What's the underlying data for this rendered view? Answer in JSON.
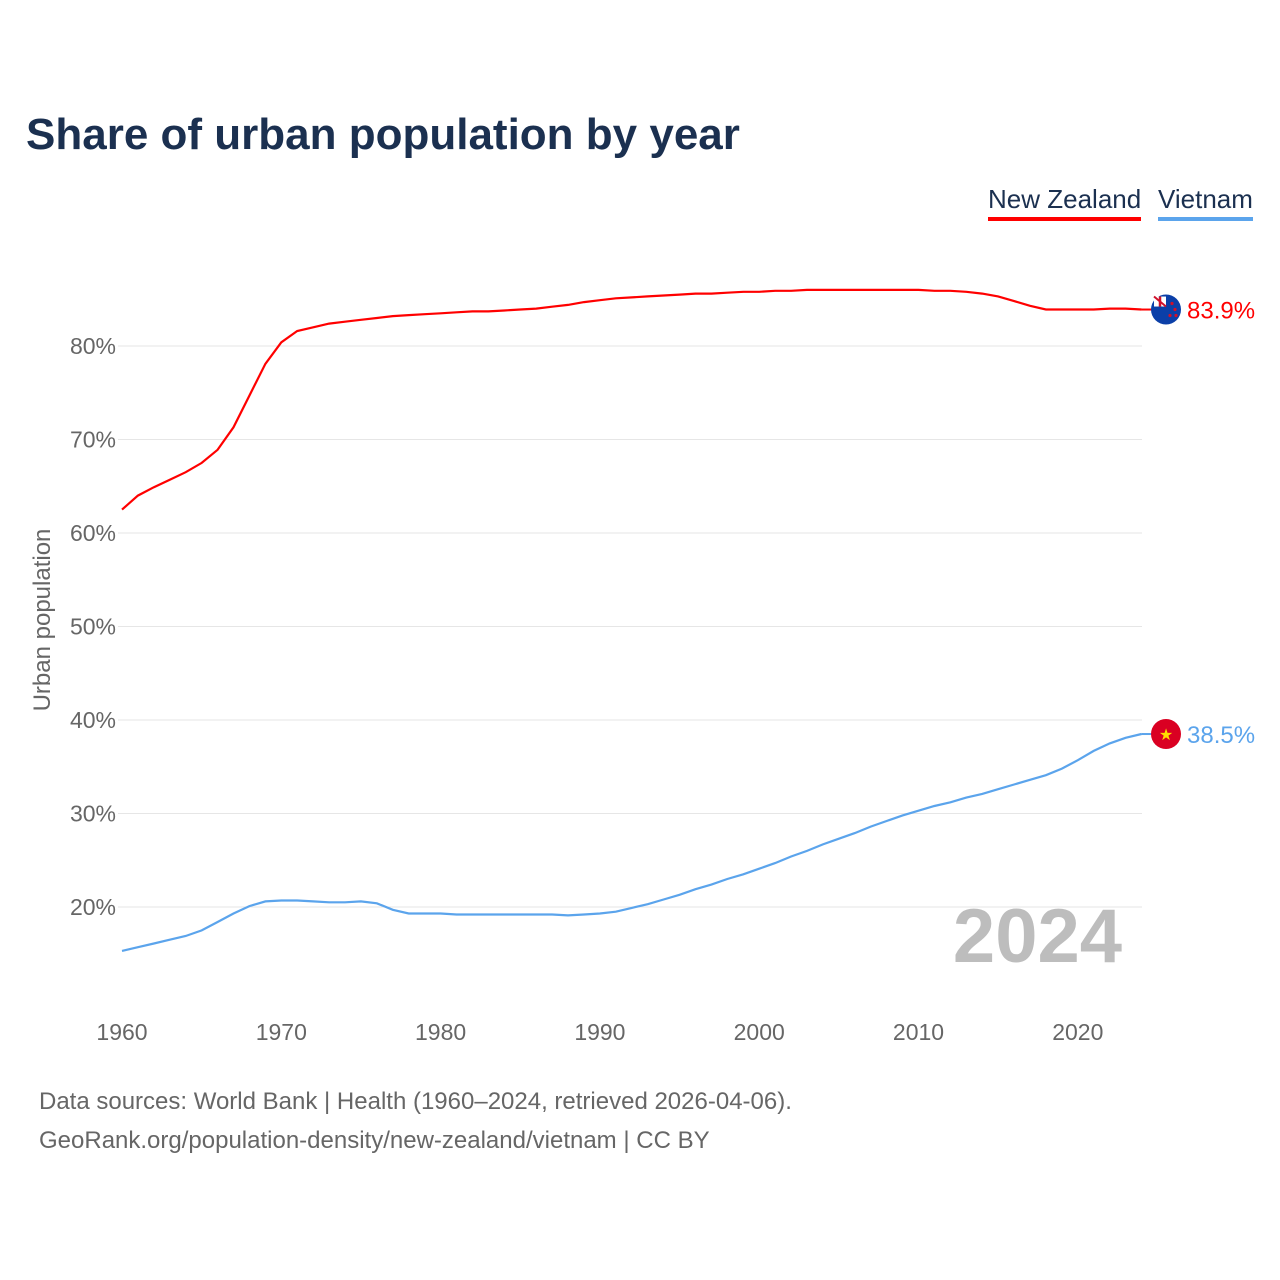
{
  "title": "Share of urban population by year",
  "legend": [
    {
      "label": "New Zealand",
      "color": "#ff0000"
    },
    {
      "label": "Vietnam",
      "color": "#5ba4ec"
    }
  ],
  "footer": {
    "line1": "Data sources: World Bank | Health (1960–2024, retrieved 2026-04-06).",
    "line2": "GeoRank.org/population-density/new-zealand/vietnam | CC BY"
  },
  "chart_data": {
    "type": "line",
    "title": "Share of urban population by year",
    "xlabel": "",
    "ylabel": "Urban population",
    "year_watermark": "2024",
    "x_ticks": [
      "1960",
      "1970",
      "1980",
      "1990",
      "2000",
      "2010",
      "2020"
    ],
    "y_ticks": [
      "20%",
      "30%",
      "40%",
      "50%",
      "60%",
      "70%",
      "80%"
    ],
    "y_tick_values": [
      20,
      30,
      40,
      50,
      60,
      70,
      80
    ],
    "xlim": [
      1960,
      2024
    ],
    "grid": true,
    "legend_position": "top-right",
    "x_start": 1960,
    "series": [
      {
        "name": "New Zealand",
        "color": "#ff0000",
        "end_label": "83.9%",
        "flag": "new-zealand",
        "values": [
          62.5,
          64.0,
          64.9,
          65.7,
          66.5,
          67.5,
          68.9,
          71.3,
          74.7,
          78.1,
          80.4,
          81.6,
          82.0,
          82.4,
          82.6,
          82.8,
          83.0,
          83.2,
          83.3,
          83.4,
          83.5,
          83.6,
          83.7,
          83.7,
          83.8,
          83.9,
          84.0,
          84.2,
          84.4,
          84.7,
          84.9,
          85.1,
          85.2,
          85.3,
          85.4,
          85.5,
          85.6,
          85.6,
          85.7,
          85.8,
          85.8,
          85.9,
          85.9,
          86.0,
          86.0,
          86.0,
          86.0,
          86.0,
          86.0,
          86.0,
          86.0,
          85.9,
          85.9,
          85.8,
          85.6,
          85.3,
          84.8,
          84.3,
          83.9,
          83.9,
          83.9,
          83.9,
          84.0,
          84.0,
          83.9
        ]
      },
      {
        "name": "Vietnam",
        "color": "#5ba4ec",
        "end_label": "38.5%",
        "flag": "vietnam",
        "values": [
          15.3,
          15.7,
          16.1,
          16.5,
          16.9,
          17.5,
          18.4,
          19.3,
          20.1,
          20.6,
          20.7,
          20.7,
          20.6,
          20.5,
          20.5,
          20.6,
          20.4,
          19.7,
          19.3,
          19.3,
          19.3,
          19.2,
          19.2,
          19.2,
          19.2,
          19.2,
          19.2,
          19.2,
          19.1,
          19.2,
          19.3,
          19.5,
          19.9,
          20.3,
          20.8,
          21.3,
          21.9,
          22.4,
          23.0,
          23.5,
          24.1,
          24.7,
          25.4,
          26.0,
          26.7,
          27.3,
          27.9,
          28.6,
          29.2,
          29.8,
          30.3,
          30.8,
          31.2,
          31.7,
          32.1,
          32.6,
          33.1,
          33.6,
          34.1,
          34.8,
          35.7,
          36.7,
          37.5,
          38.1,
          38.5
        ]
      }
    ]
  }
}
